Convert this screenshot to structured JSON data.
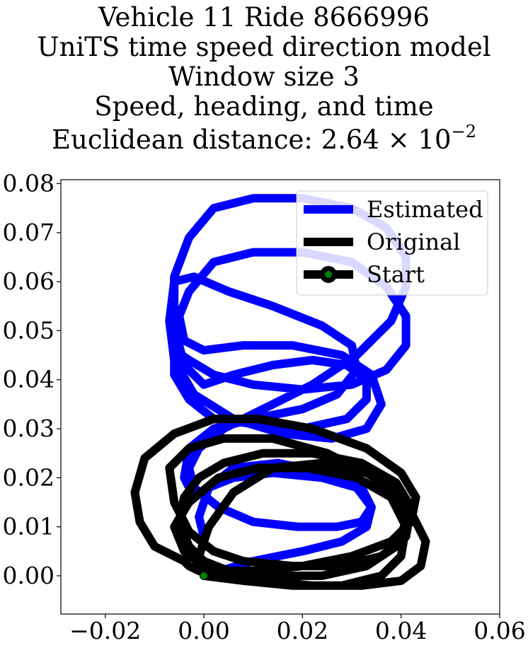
{
  "chart_data": {
    "type": "line",
    "title_lines": [
      "Vehicle 11 Ride 8666996",
      "UniTS time speed direction model",
      "Window size 3",
      "Speed, heading, and time"
    ],
    "distance_label": "Euclidean distance: 2.64",
    "distance_times": "×",
    "distance_base": "10",
    "distance_exponent": "−2",
    "xlim": [
      -0.029,
      0.06
    ],
    "ylim": [
      -0.0078,
      0.0808
    ],
    "xticks": [
      -0.02,
      0.0,
      0.02,
      0.04,
      0.06
    ],
    "xtick_labels": [
      "−0.02",
      "0.00",
      "0.02",
      "0.04",
      "0.06"
    ],
    "yticks": [
      0.0,
      0.01,
      0.02,
      0.03,
      0.04,
      0.05,
      0.06,
      0.07,
      0.08
    ],
    "ytick_labels": [
      "0.00",
      "0.01",
      "0.02",
      "0.03",
      "0.04",
      "0.05",
      "0.06",
      "0.07",
      "0.08"
    ],
    "legend_position": "top-right",
    "series": [
      {
        "name": "Estimated",
        "color": "#0000ff",
        "x": [
          0.0,
          0.01,
          0.02,
          0.028,
          0.033,
          0.034,
          0.031,
          0.024,
          0.014,
          0.006,
          0.001,
          -0.002,
          -0.004,
          -0.003,
          0.002,
          0.01,
          0.02,
          0.027,
          0.031,
          0.03,
          0.024,
          0.014,
          0.005,
          -0.002,
          -0.006,
          -0.007,
          -0.006,
          -0.002,
          0.006,
          0.016,
          0.026,
          0.033,
          0.036,
          0.034,
          0.028,
          0.018,
          0.008,
          0.0,
          -0.004,
          -0.005,
          -0.003,
          0.002,
          0.01,
          0.02,
          0.03,
          0.037,
          0.041,
          0.041,
          0.037,
          0.03,
          0.02,
          0.01,
          0.002,
          -0.003,
          -0.006,
          -0.006,
          -0.003,
          0.002,
          0.01,
          0.02,
          0.029,
          0.033,
          0.033,
          0.029,
          0.022,
          0.014,
          0.006,
          0.0,
          -0.004,
          -0.006,
          -0.006,
          -0.003,
          0.002,
          0.01,
          0.02,
          0.03,
          0.037,
          0.041,
          0.041,
          0.038,
          0.031,
          0.022,
          0.012,
          0.004,
          -0.001,
          -0.003,
          -0.002,
          0.003,
          0.01,
          0.019,
          0.027,
          0.032,
          0.034,
          0.032,
          0.025,
          0.015,
          0.006,
          0.001,
          -0.001,
          0.0
        ],
        "y": [
          0.0,
          0.003,
          0.005,
          0.007,
          0.01,
          0.014,
          0.018,
          0.02,
          0.021,
          0.02,
          0.018,
          0.016,
          0.02,
          0.026,
          0.03,
          0.032,
          0.034,
          0.037,
          0.042,
          0.047,
          0.051,
          0.055,
          0.058,
          0.061,
          0.06,
          0.052,
          0.044,
          0.037,
          0.032,
          0.029,
          0.028,
          0.03,
          0.035,
          0.041,
          0.045,
          0.047,
          0.047,
          0.046,
          0.048,
          0.053,
          0.058,
          0.064,
          0.066,
          0.066,
          0.064,
          0.059,
          0.053,
          0.047,
          0.042,
          0.039,
          0.038,
          0.039,
          0.041,
          0.044,
          0.046,
          0.041,
          0.036,
          0.032,
          0.031,
          0.03,
          0.032,
          0.036,
          0.04,
          0.043,
          0.044,
          0.043,
          0.041,
          0.039,
          0.043,
          0.051,
          0.061,
          0.069,
          0.075,
          0.077,
          0.077,
          0.075,
          0.071,
          0.065,
          0.059,
          0.052,
          0.045,
          0.039,
          0.034,
          0.03,
          0.026,
          0.022,
          0.018,
          0.014,
          0.011,
          0.01,
          0.01,
          0.011,
          0.014,
          0.018,
          0.021,
          0.023,
          0.022,
          0.018,
          0.012,
          0.008
        ]
      },
      {
        "name": "Original",
        "color": "#000000",
        "x": [
          0.0,
          0.008,
          0.018,
          0.028,
          0.036,
          0.04,
          0.041,
          0.038,
          0.031,
          0.021,
          0.011,
          0.003,
          -0.003,
          -0.006,
          -0.004,
          0.0,
          0.002,
          0.01,
          0.02,
          0.03,
          0.038,
          0.042,
          0.043,
          0.04,
          0.033,
          0.022,
          0.011,
          0.002,
          -0.006,
          -0.012,
          -0.014,
          -0.013,
          -0.01,
          -0.006,
          -0.004,
          -0.003,
          -0.001,
          0.004,
          0.012,
          0.022,
          0.032,
          0.04,
          0.044,
          0.045,
          0.042,
          0.035,
          0.025,
          0.014,
          0.004,
          -0.003,
          -0.007,
          -0.006,
          -0.003,
          0.002,
          0.008,
          0.018,
          0.028,
          0.036,
          0.041,
          0.042,
          0.039,
          0.032,
          0.022,
          0.012,
          0.004,
          -0.001,
          -0.004,
          -0.005,
          -0.003,
          0.0,
          0.005,
          0.014,
          0.024,
          0.033,
          0.039,
          0.041,
          0.039,
          0.033,
          0.024,
          0.014,
          0.006,
          0.001,
          -0.001,
          0.0
        ],
        "y": [
          0.0,
          -0.001,
          -0.002,
          -0.002,
          0.0,
          0.004,
          0.01,
          0.016,
          0.02,
          0.022,
          0.022,
          0.02,
          0.015,
          0.01,
          0.005,
          0.002,
          0.001,
          0.001,
          0.002,
          0.004,
          0.007,
          0.011,
          0.016,
          0.021,
          0.026,
          0.03,
          0.032,
          0.032,
          0.029,
          0.024,
          0.017,
          0.011,
          0.006,
          0.004,
          0.003,
          0.002,
          0.001,
          0.0,
          -0.001,
          -0.002,
          -0.002,
          -0.001,
          0.002,
          0.007,
          0.013,
          0.02,
          0.025,
          0.028,
          0.028,
          0.026,
          0.022,
          0.015,
          0.009,
          0.005,
          0.003,
          0.002,
          0.002,
          0.004,
          0.008,
          0.014,
          0.019,
          0.023,
          0.025,
          0.025,
          0.023,
          0.02,
          0.016,
          0.011,
          0.006,
          0.003,
          0.001,
          0.0,
          0.0,
          0.002,
          0.006,
          0.011,
          0.017,
          0.021,
          0.023,
          0.022,
          0.017,
          0.01,
          0.004,
          0.0
        ]
      }
    ],
    "start_marker": {
      "name": "Start",
      "x": 0.0,
      "y": 0.0,
      "color": "#008000"
    }
  }
}
